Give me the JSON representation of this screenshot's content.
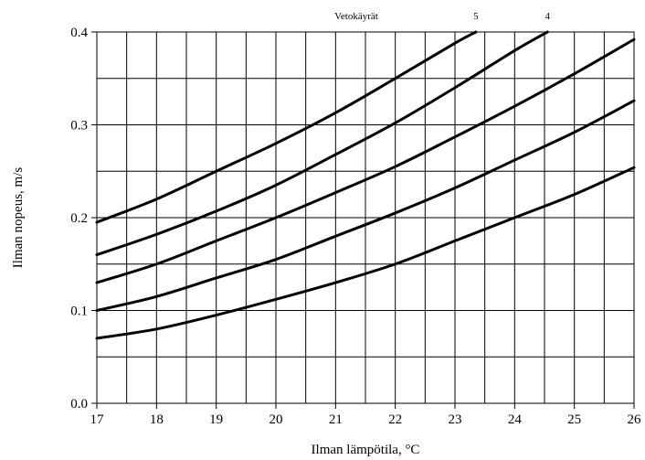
{
  "chart_data": {
    "type": "line",
    "title": "Vetokäyrät",
    "xlabel": "Ilman lämpötila, °C",
    "ylabel": "Ilman nopeus, m/s",
    "xlim": [
      17,
      26
    ],
    "ylim": [
      0.0,
      0.4
    ],
    "xticks": [
      "17",
      "18",
      "19",
      "20",
      "21",
      "22",
      "23",
      "24",
      "25",
      "26"
    ],
    "yticks": [
      "0.0",
      "0.1",
      "0.2",
      "0.3",
      "0.4"
    ],
    "grid": true,
    "series": [
      {
        "name": "",
        "label": "",
        "x": [
          17,
          18,
          19,
          20,
          21,
          22,
          23,
          24,
          25,
          26
        ],
        "y": [
          0.07,
          0.08,
          0.095,
          0.112,
          0.13,
          0.15,
          0.175,
          0.2,
          0.225,
          0.254
        ]
      },
      {
        "name": "",
        "label": "",
        "x": [
          17,
          18,
          19,
          20,
          21,
          22,
          23,
          24,
          25,
          26
        ],
        "y": [
          0.1,
          0.115,
          0.135,
          0.155,
          0.18,
          0.205,
          0.232,
          0.262,
          0.292,
          0.326
        ]
      },
      {
        "name": "",
        "label": "",
        "x": [
          17,
          18,
          19,
          20,
          21,
          22,
          23,
          24,
          25,
          26
        ],
        "y": [
          0.13,
          0.15,
          0.175,
          0.2,
          0.227,
          0.255,
          0.287,
          0.32,
          0.355,
          0.392
        ]
      },
      {
        "name": "",
        "label": "4",
        "x": [
          17,
          18,
          19,
          20,
          21,
          22,
          23,
          24,
          24.55
        ],
        "y": [
          0.16,
          0.182,
          0.207,
          0.235,
          0.268,
          0.302,
          0.34,
          0.38,
          0.4
        ]
      },
      {
        "name": "",
        "label": "5",
        "x": [
          17,
          18,
          19,
          20,
          21,
          22,
          23,
          23.35
        ],
        "y": [
          0.195,
          0.22,
          0.25,
          0.28,
          0.313,
          0.35,
          0.388,
          0.4
        ]
      }
    ]
  }
}
